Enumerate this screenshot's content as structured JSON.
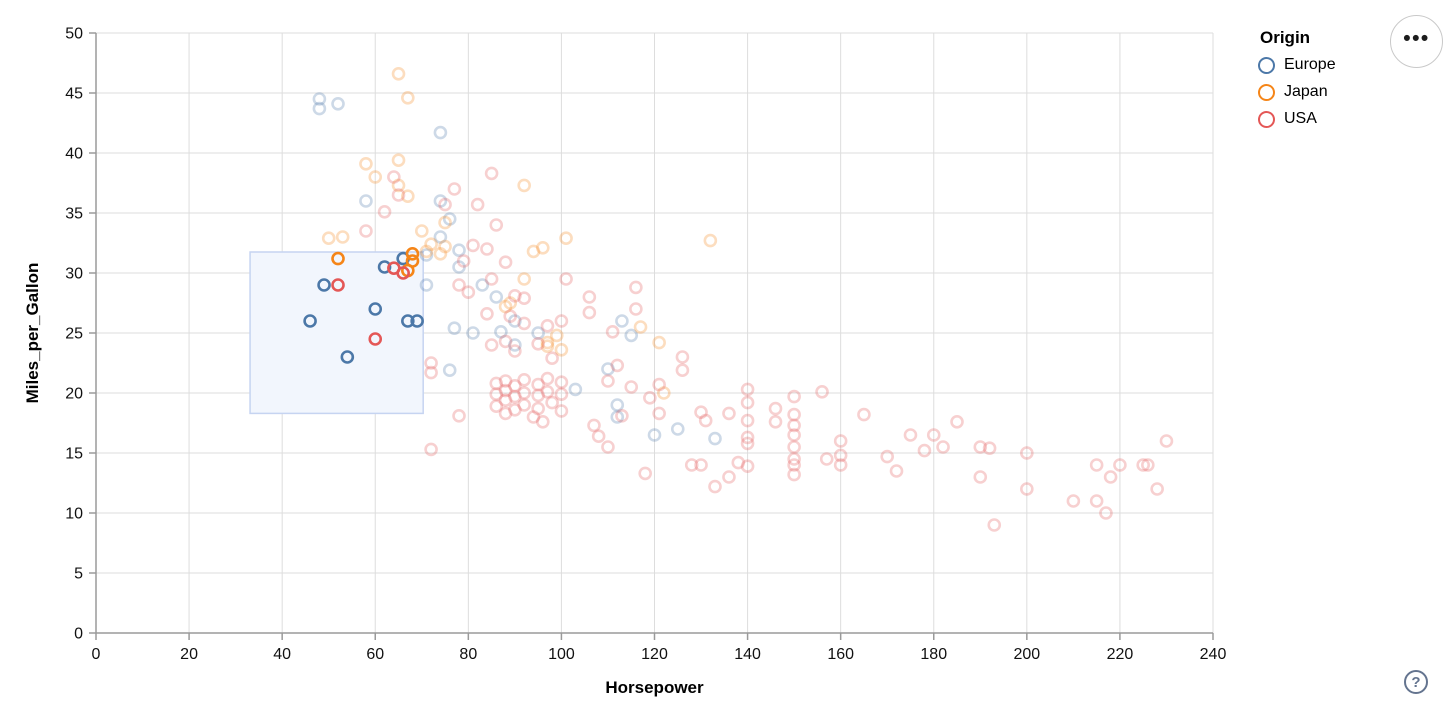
{
  "ui": {
    "menu_icon_glyph": "•••",
    "help_icon_glyph": "?"
  },
  "chart_data": {
    "type": "scatter",
    "title": "",
    "xlabel": "Horsepower",
    "ylabel": "Miles_per_Gallon",
    "xlim": [
      0,
      240
    ],
    "ylim": [
      0,
      50
    ],
    "xticks": [
      0,
      20,
      40,
      60,
      80,
      100,
      120,
      140,
      160,
      180,
      200,
      220,
      240
    ],
    "yticks": [
      0,
      5,
      10,
      15,
      20,
      25,
      30,
      35,
      40,
      45,
      50
    ],
    "grid": true,
    "point_style": {
      "shape": "open-circle",
      "radius": 5.5,
      "stroke_width": 2.6,
      "faded_opacity": 0.28,
      "selected_opacity": 1
    },
    "brush": {
      "x": [
        33.1,
        70.3
      ],
      "y": [
        18.3,
        31.75
      ],
      "fill": "#f2f6fd",
      "stroke": "#c6d4f1"
    },
    "legend": {
      "title": "Origin",
      "position": "top-right",
      "entries": [
        {
          "label": "Europe",
          "color": "#4c78a8"
        },
        {
          "label": "Japan",
          "color": "#f58518"
        },
        {
          "label": "USA",
          "color": "#e45756"
        }
      ]
    },
    "series": [
      {
        "name": "Europe",
        "color": "#4c78a8",
        "points": [
          [
            46,
            26,
            1
          ],
          [
            49,
            29,
            1
          ],
          [
            54,
            23,
            1
          ],
          [
            60,
            27,
            1
          ],
          [
            62,
            30.5,
            1
          ],
          [
            66,
            31.2,
            1
          ],
          [
            67,
            26,
            1
          ],
          [
            69,
            26,
            1
          ],
          [
            48,
            44.5
          ],
          [
            48,
            43.7
          ],
          [
            52,
            44.1
          ],
          [
            74,
            41.7
          ],
          [
            58,
            36
          ],
          [
            74,
            36
          ],
          [
            76,
            34.5
          ],
          [
            74,
            33
          ],
          [
            71,
            31.5
          ],
          [
            78,
            31.9
          ],
          [
            78,
            30.5
          ],
          [
            71,
            29
          ],
          [
            83,
            29
          ],
          [
            86,
            28
          ],
          [
            81,
            25
          ],
          [
            87,
            25.1
          ],
          [
            90,
            24
          ],
          [
            95,
            25
          ],
          [
            90,
            26
          ],
          [
            77,
            25.4
          ],
          [
            103,
            20.3
          ],
          [
            113,
            26
          ],
          [
            115,
            24.8
          ],
          [
            110,
            22
          ],
          [
            112,
            19
          ],
          [
            112,
            18
          ],
          [
            76,
            21.9
          ],
          [
            120,
            16.5
          ],
          [
            125,
            17
          ],
          [
            133,
            16.2
          ]
        ]
      },
      {
        "name": "Japan",
        "color": "#f58518",
        "points": [
          [
            52,
            31.2,
            1
          ],
          [
            67,
            30.2,
            1
          ],
          [
            68,
            31.6,
            1
          ],
          [
            68,
            31,
            1
          ],
          [
            65,
            46.6
          ],
          [
            67,
            44.6
          ],
          [
            58,
            39.1
          ],
          [
            65,
            39.4
          ],
          [
            60,
            38
          ],
          [
            65,
            37.3
          ],
          [
            67,
            36.4
          ],
          [
            92,
            37.3
          ],
          [
            50,
            32.9
          ],
          [
            53,
            33
          ],
          [
            70,
            33.5
          ],
          [
            72,
            32.4
          ],
          [
            74,
            31.6
          ],
          [
            75,
            34.2
          ],
          [
            75,
            32.2
          ],
          [
            71,
            31.8
          ],
          [
            94,
            31.8
          ],
          [
            96,
            32.1
          ],
          [
            101,
            32.9
          ],
          [
            92,
            29.5
          ],
          [
            88,
            27.2
          ],
          [
            89,
            27.5
          ],
          [
            97,
            24.2
          ],
          [
            97,
            23.9
          ],
          [
            99,
            24.8
          ],
          [
            100,
            23.6
          ],
          [
            117,
            25.5
          ],
          [
            121,
            24.2
          ],
          [
            122,
            20
          ],
          [
            132,
            32.7
          ]
        ]
      },
      {
        "name": "USA",
        "color": "#e45756",
        "points": [
          [
            52,
            29,
            1
          ],
          [
            60,
            24.5,
            1
          ],
          [
            64,
            30.4,
            1
          ],
          [
            66,
            30,
            1
          ],
          [
            62,
            35.1
          ],
          [
            64,
            38
          ],
          [
            65,
            36.5
          ],
          [
            58,
            33.5
          ],
          [
            75,
            35.7
          ],
          [
            77,
            37
          ],
          [
            82,
            35.7
          ],
          [
            85,
            38.3
          ],
          [
            86,
            34
          ],
          [
            81,
            32.3
          ],
          [
            84,
            32
          ],
          [
            88,
            30.9
          ],
          [
            79,
            31
          ],
          [
            72,
            22.5
          ],
          [
            72,
            21.7
          ],
          [
            78,
            29
          ],
          [
            80,
            28.4
          ],
          [
            85,
            29.5
          ],
          [
            90,
            28.1
          ],
          [
            92,
            27.9
          ],
          [
            84,
            26.6
          ],
          [
            85,
            24
          ],
          [
            88,
            24.3
          ],
          [
            90,
            23.5
          ],
          [
            92,
            25.8
          ],
          [
            95,
            24.1
          ],
          [
            97,
            25.6
          ],
          [
            98,
            22.9
          ],
          [
            100,
            26
          ],
          [
            89,
            26.4
          ],
          [
            86,
            20.8
          ],
          [
            86,
            19.9
          ],
          [
            86,
            18.9
          ],
          [
            88,
            21
          ],
          [
            88,
            20.2
          ],
          [
            88,
            19.4
          ],
          [
            88,
            18.3
          ],
          [
            90,
            20.6
          ],
          [
            90,
            19.7
          ],
          [
            90,
            18.6
          ],
          [
            92,
            21.1
          ],
          [
            92,
            20
          ],
          [
            92,
            19
          ],
          [
            95,
            20.7
          ],
          [
            95,
            19.8
          ],
          [
            95,
            18.7
          ],
          [
            97,
            21.2
          ],
          [
            97,
            20.1
          ],
          [
            98,
            19.2
          ],
          [
            100,
            20.9
          ],
          [
            100,
            19.9
          ],
          [
            100,
            18.5
          ],
          [
            96,
            17.6
          ],
          [
            94,
            18
          ],
          [
            72,
            15.3
          ],
          [
            78,
            18.1
          ],
          [
            101,
            29.5
          ],
          [
            106,
            28
          ],
          [
            106,
            26.7
          ],
          [
            111,
            25.1
          ],
          [
            116,
            28.8
          ],
          [
            116,
            27
          ],
          [
            110,
            21
          ],
          [
            112,
            22.3
          ],
          [
            115,
            20.5
          ],
          [
            107,
            17.3
          ],
          [
            108,
            16.4
          ],
          [
            110,
            15.5
          ],
          [
            113,
            18.1
          ],
          [
            118,
            13.3
          ],
          [
            119,
            19.6
          ],
          [
            121,
            20.7
          ],
          [
            126,
            21.9
          ],
          [
            126,
            23
          ],
          [
            121,
            18.3
          ],
          [
            130,
            18.4
          ],
          [
            131,
            17.7
          ],
          [
            136,
            18.3
          ],
          [
            128,
            14
          ],
          [
            130,
            14
          ],
          [
            133,
            12.2
          ],
          [
            136,
            13
          ],
          [
            138,
            14.2
          ],
          [
            140,
            13.9
          ],
          [
            140,
            20.3
          ],
          [
            140,
            19.2
          ],
          [
            140,
            17.7
          ],
          [
            140,
            16.3
          ],
          [
            140,
            15.8
          ],
          [
            146,
            18.7
          ],
          [
            146,
            17.6
          ],
          [
            150,
            19.7
          ],
          [
            150,
            18.2
          ],
          [
            150,
            17.3
          ],
          [
            150,
            16.5
          ],
          [
            150,
            15.5
          ],
          [
            150,
            14.5
          ],
          [
            150,
            14
          ],
          [
            150,
            13.2
          ],
          [
            156,
            20.1
          ],
          [
            157,
            14.5
          ],
          [
            160,
            16
          ],
          [
            160,
            14.8
          ],
          [
            160,
            14
          ],
          [
            165,
            18.2
          ],
          [
            170,
            14.7
          ],
          [
            172,
            13.5
          ],
          [
            175,
            16.5
          ],
          [
            178,
            15.2
          ],
          [
            180,
            16.5
          ],
          [
            182,
            15.5
          ],
          [
            185,
            17.6
          ],
          [
            190,
            15.5
          ],
          [
            192,
            15.4
          ],
          [
            200,
            15
          ],
          [
            190,
            13
          ],
          [
            200,
            12
          ],
          [
            193,
            9
          ],
          [
            210,
            11
          ],
          [
            215,
            11
          ],
          [
            217,
            10
          ],
          [
            215,
            14
          ],
          [
            220,
            14
          ],
          [
            225,
            14
          ],
          [
            226,
            14
          ],
          [
            218,
            13
          ],
          [
            228,
            12
          ],
          [
            230,
            16
          ]
        ]
      }
    ]
  }
}
